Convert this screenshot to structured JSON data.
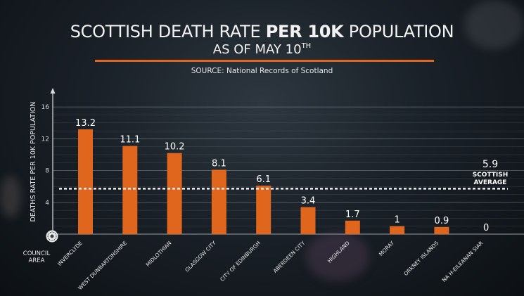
{
  "header": {
    "title_pre": "SCOTTISH DEATH RATE ",
    "title_bold": "PER 10K",
    "title_post": " POPULATION",
    "subtitle_main": "AS OF MAY 10",
    "subtitle_sup": "TH",
    "source": "SOURCE: National Records of Scotland"
  },
  "council_area_label": [
    "COUNCIL",
    "AREA"
  ],
  "colors": {
    "bar": "#e0661e",
    "accent_rule": "#e0661e",
    "average_line": "#e6e6e6",
    "grid": "#8a949c"
  },
  "chart_data": {
    "type": "bar",
    "title": "SCOTTISH DEATH RATE PER 10K POPULATION AS OF MAY 10TH",
    "ylabel": "DEATHS RATE PER 10K POPULATION",
    "xlabel": "",
    "ylim": [
      0,
      17
    ],
    "yticks": [
      4,
      8,
      12,
      16
    ],
    "grid": true,
    "categories": [
      "INVERCLYDE",
      "WEST DUNBARTONSHIRE",
      "MIDLOTHIAN",
      "GLASGOW CITY",
      "CITY OF EDINBURGH",
      "ABERDEEN CITY",
      "HIGHLAND",
      "MORAY",
      "ORKNEY ISLANDS",
      "NA H-EILEANAN SIAR"
    ],
    "values": [
      13.2,
      11.1,
      10.2,
      8.1,
      6.1,
      3.4,
      1.7,
      1,
      0.9,
      0
    ],
    "value_labels": [
      "13.2",
      "11.1",
      "10.2",
      "8.1",
      "6.1",
      "3.4",
      "1.7",
      "1",
      "0.9",
      "0"
    ],
    "reference_line": {
      "value": 5.9,
      "label_value": "5.9",
      "label": [
        "SCOTTISH",
        "AVERAGE"
      ]
    }
  }
}
